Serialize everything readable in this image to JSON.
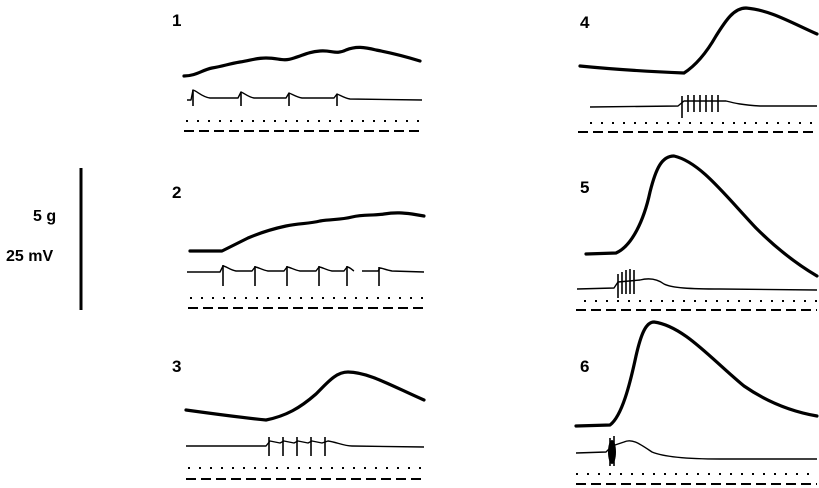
{
  "calibration": {
    "force_label": "5 g",
    "voltage_label": "25 mV"
  },
  "panels": [
    {
      "number": "1"
    },
    {
      "number": "2"
    },
    {
      "number": "3"
    },
    {
      "number": "4"
    },
    {
      "number": "5"
    },
    {
      "number": "6"
    }
  ]
}
